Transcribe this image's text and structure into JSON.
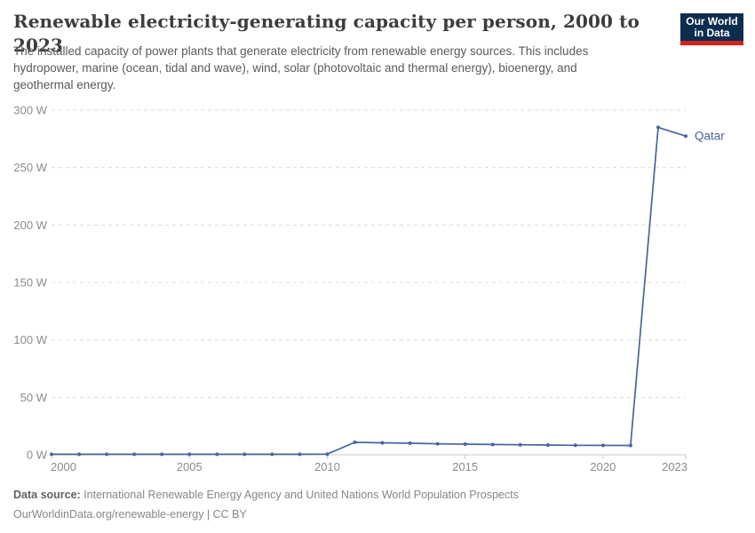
{
  "header": {
    "title": "Renewable electricity-generating capacity per person, 2000 to 2023"
  },
  "logo": {
    "line1": "Our World",
    "line2": "in Data",
    "bg_color": "#0d2d4e",
    "accent_color": "#cf2420"
  },
  "subtitle": {
    "line1": "The installed capacity of power plants that generate electricity from renewable energy sources. This includes",
    "line2": "hydropower, marine (ocean, tidal and wave), wind, solar (photovoltaic and thermal energy), bioenergy, and",
    "line3": "geothermal energy."
  },
  "chart_data": {
    "type": "line",
    "title": "Renewable electricity-generating capacity per person, 2000 to 2023",
    "unit": "W",
    "x": [
      2000,
      2001,
      2002,
      2003,
      2004,
      2005,
      2006,
      2007,
      2008,
      2009,
      2010,
      2011,
      2012,
      2013,
      2014,
      2015,
      2016,
      2017,
      2018,
      2019,
      2020,
      2021,
      2022,
      2023
    ],
    "series": [
      {
        "name": "Qatar",
        "color": "#4a649c",
        "values": [
          0.5,
          0.5,
          0.5,
          0.5,
          0.5,
          0.5,
          0.5,
          0.5,
          0.5,
          0.5,
          0.6,
          10.9,
          10.4,
          10.1,
          9.6,
          9.3,
          9.0,
          8.7,
          8.5,
          8.3,
          8.2,
          8.1,
          285.0,
          277.4
        ]
      }
    ],
    "xlabel": "",
    "ylabel": "",
    "ylim": [
      0,
      300
    ],
    "xlim": [
      2000,
      2023
    ],
    "yticks": [
      0,
      50,
      100,
      150,
      200,
      250,
      300
    ],
    "xticks": [
      2000,
      2005,
      2010,
      2015,
      2020,
      2023
    ],
    "grid": "horizontal-dashed",
    "legend_position": "end-of-line-label",
    "colors": {
      "gridline": "#dcdcdc",
      "axis_line": "#c8c8c8",
      "tick_label": "#8b8b8b"
    }
  },
  "footer": {
    "source_label": "Data source:",
    "source_text": " International Renewable Energy Agency and United Nations World Population Prospects",
    "citation": "OurWorldinData.org/renewable-energy | CC BY"
  }
}
